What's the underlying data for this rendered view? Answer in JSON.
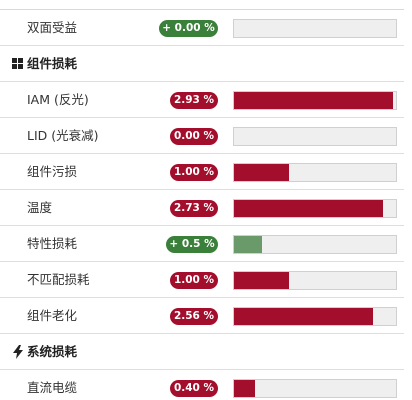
{
  "partial_section": {
    "title": ""
  },
  "rows_top": [
    {
      "label": "双面受益",
      "badge": "+ 0.00 %",
      "color": "green",
      "fill": 0.0
    }
  ],
  "module_losses": {
    "title": "组件损耗",
    "icon": "grid-icon",
    "items": [
      {
        "label": "IAM (反光)",
        "badge": "2.93 %",
        "color": "red",
        "fill": 0.98
      },
      {
        "label": "LID (光衰减)",
        "badge": "0.00 %",
        "color": "red",
        "fill": 0.0
      },
      {
        "label": "组件污损",
        "badge": "1.00 %",
        "color": "red",
        "fill": 0.34
      },
      {
        "label": "温度",
        "badge": "2.73 %",
        "color": "red",
        "fill": 0.92
      },
      {
        "label": "特性损耗",
        "badge": "+ 0.5 %",
        "color": "green",
        "fill": 0.17
      },
      {
        "label": "不匹配损耗",
        "badge": "1.00 %",
        "color": "red",
        "fill": 0.34
      },
      {
        "label": "组件老化",
        "badge": "2.56 %",
        "color": "red",
        "fill": 0.86
      }
    ]
  },
  "system_losses": {
    "title": "系统损耗",
    "icon": "lightning-icon",
    "items": [
      {
        "label": "直流电缆",
        "badge": "0.40 %",
        "color": "red",
        "fill": 0.13
      }
    ]
  },
  "colors": {
    "loss": "#a30e2c",
    "gain": "#3a7f3a",
    "gain_bar": "#6a9a6a",
    "track": "#efefef"
  }
}
